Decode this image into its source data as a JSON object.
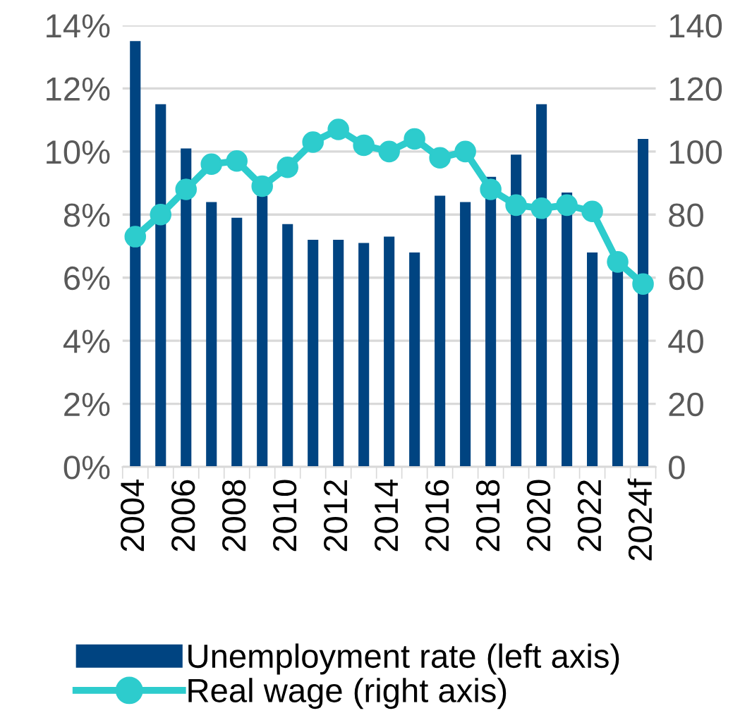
{
  "chart_data": {
    "type": "bar",
    "categories": [
      "2004",
      null,
      "2006",
      null,
      "2008",
      null,
      "2010",
      null,
      "2012",
      null,
      "2014",
      null,
      "2016",
      null,
      "2018",
      null,
      "2020",
      null,
      "2022",
      null,
      "2024f"
    ],
    "series": [
      {
        "name": "Unemployment rate (left axis)",
        "color": "#004481",
        "values": [
          13.5,
          11.5,
          10.1,
          8.4,
          7.9,
          8.6,
          7.7,
          7.2,
          7.2,
          7.1,
          7.3,
          6.8,
          8.6,
          8.4,
          9.2,
          9.9,
          11.5,
          8.7,
          6.8,
          6.2,
          10.4
        ]
      },
      {
        "name": "Real wage (right axis)",
        "type": "line",
        "axis": "y2",
        "color": "#2dcccd",
        "marker": "circle",
        "values": [
          73,
          80,
          88,
          96,
          97,
          89,
          95,
          103,
          107,
          102,
          100,
          104,
          98,
          100,
          88,
          83,
          82,
          83,
          81,
          65,
          58
        ]
      }
    ],
    "ylim": [
      0,
      14
    ],
    "yticks": [
      {
        "value": 0,
        "label": "0%"
      },
      {
        "value": 2,
        "label": "2%"
      },
      {
        "value": 4,
        "label": "4%"
      },
      {
        "value": 6,
        "label": "6%"
      },
      {
        "value": 8,
        "label": "8%"
      },
      {
        "value": 10,
        "label": "10%"
      },
      {
        "value": 12,
        "label": "12%"
      },
      {
        "value": 14,
        "label": "14%"
      }
    ],
    "y2lim": [
      0,
      140
    ],
    "y2ticks": [
      0,
      20,
      40,
      60,
      80,
      100,
      120,
      140
    ],
    "grid": "y",
    "legend": "bottom"
  }
}
